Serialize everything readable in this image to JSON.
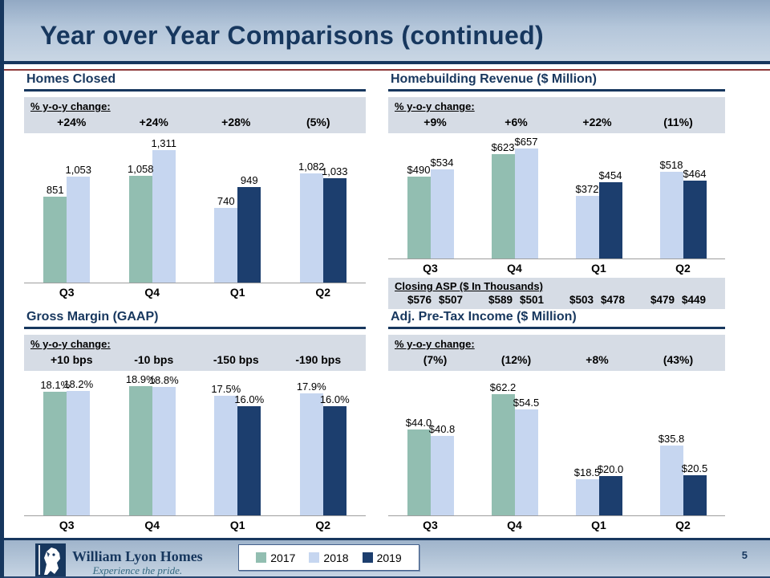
{
  "slide": {
    "title": "Year over Year Comparisons (continued)",
    "page_number": "5"
  },
  "legend": {
    "items": [
      {
        "year": "2017",
        "label": "2017",
        "color": "#92BEB1"
      },
      {
        "year": "2018",
        "label": "2018",
        "color": "#C6D6F0"
      },
      {
        "year": "2019",
        "label": "2019",
        "color": "#1C3E6E"
      }
    ]
  },
  "footer": {
    "company": "William Lyon Homes",
    "tagline": "Experience the pride."
  },
  "colors": {
    "accent_navy": "#17375E",
    "maroon_rule": "#8E3B3B",
    "box_bg": "#D6DCE5",
    "axis_gray": "#9E9E9E"
  },
  "chart_data": [
    {
      "type": "bar",
      "title": "Homes Closed",
      "yoy_label": "% y-o-y change:",
      "yoy_values": [
        "+24%",
        "+24%",
        "+28%",
        "(5%)"
      ],
      "categories": [
        "Q3",
        "Q4",
        "Q1",
        "Q2"
      ],
      "ylim": [
        0,
        1400
      ],
      "grid": false,
      "groups": [
        {
          "category": "Q3",
          "bars": [
            {
              "year": "2017",
              "value": 851,
              "label": "851"
            },
            {
              "year": "2018",
              "value": 1053,
              "label": "1,053"
            }
          ]
        },
        {
          "category": "Q4",
          "bars": [
            {
              "year": "2017",
              "value": 1058,
              "label": "1,058"
            },
            {
              "year": "2018",
              "value": 1311,
              "label": "1,311"
            }
          ]
        },
        {
          "category": "Q1",
          "bars": [
            {
              "year": "2018",
              "value": 740,
              "label": "740"
            },
            {
              "year": "2019",
              "value": 949,
              "label": "949"
            }
          ]
        },
        {
          "category": "Q2",
          "bars": [
            {
              "year": "2018",
              "value": 1082,
              "label": "1,082"
            },
            {
              "year": "2019",
              "value": 1033,
              "label": "1,033"
            }
          ]
        }
      ]
    },
    {
      "type": "bar",
      "title": "Homebuilding Revenue ($ Million)",
      "yoy_label": "% y-o-y change:",
      "yoy_values": [
        "+9%",
        "+6%",
        "+22%",
        "(11%)"
      ],
      "categories": [
        "Q3",
        "Q4",
        "Q1",
        "Q2"
      ],
      "ylim": [
        0,
        700
      ],
      "grid": false,
      "groups": [
        {
          "category": "Q3",
          "bars": [
            {
              "year": "2017",
              "value": 490,
              "label": "$490"
            },
            {
              "year": "2018",
              "value": 534,
              "label": "$534"
            }
          ]
        },
        {
          "category": "Q4",
          "bars": [
            {
              "year": "2017",
              "value": 623,
              "label": "$623"
            },
            {
              "year": "2018",
              "value": 657,
              "label": "$657"
            }
          ]
        },
        {
          "category": "Q1",
          "bars": [
            {
              "year": "2018",
              "value": 372,
              "label": "$372"
            },
            {
              "year": "2019",
              "value": 454,
              "label": "$454"
            }
          ]
        },
        {
          "category": "Q2",
          "bars": [
            {
              "year": "2018",
              "value": 518,
              "label": "$518"
            },
            {
              "year": "2019",
              "value": 464,
              "label": "$464"
            }
          ]
        }
      ],
      "footnote": {
        "label": "Closing ASP ($ In Thousands)",
        "pairs": [
          [
            "$576",
            "$507"
          ],
          [
            "$589",
            "$501"
          ],
          [
            "$503",
            "$478"
          ],
          [
            "$479",
            "$449"
          ]
        ]
      }
    },
    {
      "type": "bar",
      "title": "Gross Margin (GAAP)",
      "yoy_label": "% y-o-y change:",
      "yoy_values": [
        "+10 bps",
        "-10 bps",
        "-150 bps",
        "-190 bps"
      ],
      "categories": [
        "Q3",
        "Q4",
        "Q1",
        "Q2"
      ],
      "ylim": [
        0,
        20
      ],
      "grid": false,
      "groups": [
        {
          "category": "Q3",
          "bars": [
            {
              "year": "2017",
              "value": 18.1,
              "label": "18.1%"
            },
            {
              "year": "2018",
              "value": 18.2,
              "label": "18.2%"
            }
          ]
        },
        {
          "category": "Q4",
          "bars": [
            {
              "year": "2017",
              "value": 18.9,
              "label": "18.9%"
            },
            {
              "year": "2018",
              "value": 18.8,
              "label": "18.8%"
            }
          ]
        },
        {
          "category": "Q1",
          "bars": [
            {
              "year": "2018",
              "value": 17.5,
              "label": "17.5%"
            },
            {
              "year": "2019",
              "value": 16.0,
              "label": "16.0%"
            }
          ]
        },
        {
          "category": "Q2",
          "bars": [
            {
              "year": "2018",
              "value": 17.9,
              "label": "17.9%"
            },
            {
              "year": "2019",
              "value": 16.0,
              "label": "16.0%"
            }
          ]
        }
      ]
    },
    {
      "type": "bar",
      "title": "Adj. Pre-Tax Income ($ Million)",
      "yoy_label": "% y-o-y change:",
      "yoy_values": [
        "(7%)",
        "(12%)",
        "+8%",
        "(43%)"
      ],
      "categories": [
        "Q3",
        "Q4",
        "Q1",
        "Q2"
      ],
      "ylim": [
        0,
        70
      ],
      "grid": false,
      "groups": [
        {
          "category": "Q3",
          "bars": [
            {
              "year": "2017",
              "value": 44.0,
              "label": "$44.0"
            },
            {
              "year": "2018",
              "value": 40.8,
              "label": "$40.8"
            }
          ]
        },
        {
          "category": "Q4",
          "bars": [
            {
              "year": "2017",
              "value": 62.2,
              "label": "$62.2"
            },
            {
              "year": "2018",
              "value": 54.5,
              "label": "$54.5"
            }
          ]
        },
        {
          "category": "Q1",
          "bars": [
            {
              "year": "2018",
              "value": 18.5,
              "label": "$18.5"
            },
            {
              "year": "2019",
              "value": 20.0,
              "label": "$20.0"
            }
          ]
        },
        {
          "category": "Q2",
          "bars": [
            {
              "year": "2018",
              "value": 35.8,
              "label": "$35.8"
            },
            {
              "year": "2019",
              "value": 20.5,
              "label": "$20.5"
            }
          ]
        }
      ]
    }
  ]
}
